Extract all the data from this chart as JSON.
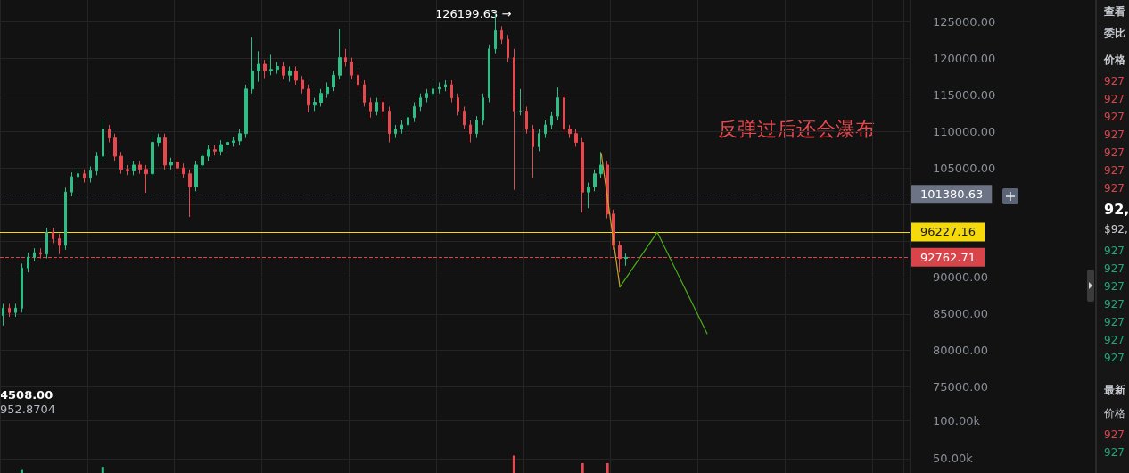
{
  "chart_data": [
    {
      "type": "candlestick",
      "tick_labels": "y",
      "grid": true,
      "categories": [
        null,
        null,
        null,
        null,
        null,
        null,
        null,
        null,
        null,
        null,
        null,
        null,
        null,
        null,
        null,
        null,
        null,
        null,
        null,
        null,
        null,
        null,
        null,
        null,
        null,
        null,
        null,
        null,
        null,
        null,
        null,
        null,
        null,
        null,
        null,
        null,
        null,
        null,
        null,
        null,
        null,
        null,
        null,
        null,
        null,
        null,
        null,
        null,
        null,
        null,
        null,
        null,
        null,
        null,
        null,
        null,
        null,
        null,
        null,
        null,
        null,
        null,
        null,
        null,
        null,
        null,
        null,
        null,
        null,
        null,
        null,
        null,
        null,
        null,
        null,
        null,
        null,
        null,
        null,
        null,
        null,
        null,
        null,
        null,
        null,
        null,
        null,
        null,
        null,
        null,
        null,
        null,
        null,
        null,
        null,
        null,
        null,
        null,
        null,
        null,
        null,
        null,
        null,
        null,
        null,
        null,
        null,
        null,
        null,
        null,
        null,
        null,
        null,
        null,
        null,
        null,
        null,
        null,
        null,
        null,
        null,
        null,
        null,
        null,
        null,
        null,
        null,
        null,
        null,
        null,
        null,
        null,
        null,
        null,
        null,
        null,
        null,
        null,
        null,
        null,
        null,
        null,
        null,
        null,
        null,
        null
      ],
      "ylim": [
        73000,
        128000
      ],
      "yticks": [
        {
          "value": 75000,
          "label": "75000.00"
        },
        {
          "value": 80000,
          "label": "80000.00"
        },
        {
          "value": 85000,
          "label": "85000.00"
        },
        {
          "value": 90000,
          "label": "90000.00"
        },
        {
          "value": 95000,
          "label": null
        },
        {
          "value": 100000,
          "label": null
        },
        {
          "value": 105000,
          "label": "105000.00"
        },
        {
          "value": 110000,
          "label": "110000.00"
        },
        {
          "value": 115000,
          "label": "115000.00"
        },
        {
          "value": 120000,
          "label": "120000.00"
        },
        {
          "value": 125000,
          "label": "125000.00"
        }
      ],
      "ohlc": [
        [
          84800,
          86400,
          83400,
          85800
        ],
        [
          85800,
          86400,
          84600,
          85200
        ],
        [
          85200,
          86400,
          84600,
          85800
        ],
        [
          85800,
          91900,
          85200,
          91300
        ],
        [
          91300,
          93400,
          90700,
          92800
        ],
        [
          92800,
          94000,
          92200,
          93400
        ],
        [
          93400,
          94000,
          92600,
          93200
        ],
        [
          93200,
          96800,
          92600,
          96200
        ],
        [
          96200,
          96800,
          94700,
          95300
        ],
        [
          95300,
          96000,
          93200,
          94400
        ],
        [
          94400,
          102300,
          93800,
          101700
        ],
        [
          101700,
          104400,
          101100,
          103800
        ],
        [
          103800,
          104800,
          103200,
          104200
        ],
        [
          104200,
          104800,
          103000,
          103600
        ],
        [
          103600,
          105200,
          103000,
          104600
        ],
        [
          104600,
          107200,
          104000,
          106600
        ],
        [
          106600,
          111700,
          106000,
          110300
        ],
        [
          110300,
          110900,
          108500,
          109100
        ],
        [
          109100,
          109700,
          106000,
          106600
        ],
        [
          106600,
          107200,
          104200,
          104800
        ],
        [
          104800,
          105400,
          104000,
          104600
        ],
        [
          104600,
          106000,
          104000,
          105400
        ],
        [
          105400,
          106000,
          104200,
          104800
        ],
        [
          104800,
          105400,
          101600,
          104200
        ],
        [
          104200,
          109700,
          103600,
          108500
        ],
        [
          108500,
          109700,
          107900,
          109100
        ],
        [
          109100,
          109700,
          104800,
          105400
        ],
        [
          105400,
          106400,
          104800,
          105800
        ],
        [
          105800,
          106400,
          104400,
          105000
        ],
        [
          105000,
          105600,
          103600,
          104200
        ],
        [
          104200,
          104800,
          98300,
          102400
        ],
        [
          102400,
          106000,
          101800,
          105400
        ],
        [
          105400,
          107200,
          104800,
          106600
        ],
        [
          106600,
          108100,
          106000,
          107500
        ],
        [
          107500,
          108100,
          106700,
          107300
        ],
        [
          107300,
          108800,
          106700,
          108200
        ],
        [
          108200,
          109100,
          107600,
          108500
        ],
        [
          108500,
          109300,
          107900,
          108700
        ],
        [
          108700,
          110300,
          108100,
          109700
        ],
        [
          109700,
          116400,
          109100,
          115800
        ],
        [
          115800,
          122900,
          115200,
          118300
        ],
        [
          118300,
          121000,
          116800,
          119200
        ],
        [
          119200,
          119800,
          117300,
          118300
        ],
        [
          118300,
          120500,
          117700,
          118500
        ],
        [
          118500,
          119500,
          117900,
          118900
        ],
        [
          118900,
          119500,
          117100,
          117700
        ],
        [
          117700,
          118900,
          116800,
          118300
        ],
        [
          118300,
          118900,
          116400,
          117000
        ],
        [
          117000,
          117600,
          115200,
          115800
        ],
        [
          115800,
          116400,
          112600,
          113600
        ],
        [
          113600,
          114600,
          112800,
          114000
        ],
        [
          114000,
          115800,
          113400,
          115200
        ],
        [
          115200,
          116700,
          114600,
          116100
        ],
        [
          116100,
          118300,
          115500,
          117700
        ],
        [
          117700,
          124100,
          117100,
          120100
        ],
        [
          120100,
          121300,
          118900,
          119500
        ],
        [
          119500,
          120100,
          117100,
          117700
        ],
        [
          117700,
          118300,
          115800,
          116400
        ],
        [
          116400,
          117000,
          113400,
          114000
        ],
        [
          114000,
          114600,
          111900,
          112800
        ],
        [
          112800,
          114600,
          112200,
          114000
        ],
        [
          114000,
          114600,
          111600,
          112800
        ],
        [
          112800,
          113400,
          108500,
          109700
        ],
        [
          109700,
          110900,
          109100,
          110300
        ],
        [
          110300,
          111500,
          109700,
          110900
        ],
        [
          110900,
          112500,
          110300,
          111900
        ],
        [
          111900,
          114000,
          111300,
          113400
        ],
        [
          113400,
          115200,
          112800,
          114600
        ],
        [
          114600,
          115800,
          114000,
          115200
        ],
        [
          115200,
          116400,
          114600,
          115800
        ],
        [
          115800,
          116700,
          115200,
          116100
        ],
        [
          116100,
          117000,
          115500,
          116400
        ],
        [
          116400,
          117000,
          114000,
          114600
        ],
        [
          114600,
          115200,
          112200,
          112800
        ],
        [
          112800,
          113400,
          110300,
          110900
        ],
        [
          110900,
          111500,
          108500,
          109700
        ],
        [
          109700,
          112100,
          109100,
          111500
        ],
        [
          111500,
          115200,
          110900,
          114600
        ],
        [
          114600,
          121900,
          114000,
          121300
        ],
        [
          121300,
          126199.63,
          120700,
          123800
        ],
        [
          123800,
          124400,
          122000,
          122600
        ],
        [
          122600,
          123200,
          119500,
          120100
        ],
        [
          120100,
          121300,
          102000,
          112800
        ],
        [
          112800,
          115800,
          112200,
          112800
        ],
        [
          112800,
          113400,
          109700,
          110300
        ],
        [
          110300,
          110900,
          103600,
          107900
        ],
        [
          107900,
          110300,
          107300,
          109700
        ],
        [
          109700,
          111500,
          109100,
          110900
        ],
        [
          110900,
          112700,
          110300,
          112100
        ],
        [
          112100,
          116000,
          111500,
          114600
        ],
        [
          114600,
          115200,
          109700,
          110300
        ],
        [
          110300,
          110900,
          109100,
          109700
        ],
        [
          109700,
          110300,
          107900,
          108500
        ],
        [
          108500,
          109100,
          98900,
          101700
        ],
        [
          101700,
          103000,
          99500,
          102400
        ],
        [
          102400,
          104800,
          101800,
          104200
        ],
        [
          104200,
          107200,
          103600,
          105400
        ],
        [
          105400,
          106000,
          98100,
          98700
        ],
        [
          98700,
          99300,
          93800,
          94400
        ],
        [
          94400,
          95000,
          90700,
          92600
        ],
        [
          92600,
          93300,
          91600,
          92762.71
        ],
        null,
        null,
        null,
        null,
        null,
        null,
        null,
        null,
        null,
        null,
        null,
        null,
        null,
        null,
        null,
        null,
        null,
        null,
        null,
        null,
        null,
        null,
        null,
        null,
        null,
        null,
        null,
        null,
        null,
        null,
        null,
        null,
        null,
        null,
        null,
        null,
        null,
        null,
        null,
        null,
        null,
        null,
        null,
        null,
        null
      ],
      "series": [
        {
          "type": "line",
          "color": "#c9a227",
          "values": [
            null,
            null,
            null,
            null,
            null,
            null,
            null,
            null,
            null,
            null,
            null,
            null,
            null,
            null,
            null,
            null,
            null,
            null,
            null,
            null,
            null,
            null,
            null,
            null,
            null,
            null,
            null,
            null,
            null,
            null,
            null,
            null,
            null,
            null,
            null,
            null,
            null,
            null,
            null,
            null,
            null,
            null,
            null,
            null,
            null,
            null,
            null,
            null,
            null,
            null,
            null,
            null,
            null,
            null,
            null,
            null,
            null,
            null,
            null,
            null,
            null,
            null,
            null,
            null,
            null,
            null,
            null,
            null,
            null,
            null,
            null,
            null,
            null,
            null,
            null,
            null,
            null,
            null,
            null,
            null,
            null,
            null,
            null,
            null,
            null,
            null,
            null,
            null,
            null,
            null,
            null,
            null,
            null,
            null,
            null,
            null,
            107000,
            null,
            null,
            88700,
            null,
            null,
            null,
            null,
            null,
            null,
            null,
            null,
            null,
            null,
            null,
            null,
            null,
            null,
            null,
            null,
            null,
            null,
            null,
            null,
            null,
            null,
            null,
            null,
            null,
            null,
            null,
            null,
            null,
            null,
            null,
            null,
            null,
            null,
            null,
            null,
            null,
            null,
            null,
            null,
            null,
            null,
            null,
            null,
            null,
            null
          ]
        },
        {
          "type": "line",
          "color": "#4caf1a",
          "values": [
            null,
            null,
            null,
            null,
            null,
            null,
            null,
            null,
            null,
            null,
            null,
            null,
            null,
            null,
            null,
            null,
            null,
            null,
            null,
            null,
            null,
            null,
            null,
            null,
            null,
            null,
            null,
            null,
            null,
            null,
            null,
            null,
            null,
            null,
            null,
            null,
            null,
            null,
            null,
            null,
            null,
            null,
            null,
            null,
            null,
            null,
            null,
            null,
            null,
            null,
            null,
            null,
            null,
            null,
            null,
            null,
            null,
            null,
            null,
            null,
            null,
            null,
            null,
            null,
            null,
            null,
            null,
            null,
            null,
            null,
            null,
            null,
            null,
            null,
            null,
            null,
            null,
            null,
            null,
            null,
            null,
            null,
            null,
            null,
            null,
            null,
            null,
            null,
            null,
            null,
            null,
            null,
            null,
            null,
            null,
            null,
            null,
            null,
            null,
            88700,
            null,
            null,
            null,
            null,
            null,
            96200,
            null,
            null,
            null,
            null,
            null,
            null,
            null,
            82300,
            null,
            null,
            null,
            null,
            null,
            null,
            null,
            null,
            null,
            null,
            null,
            null,
            null,
            null,
            null,
            null,
            null,
            null,
            null,
            null,
            null,
            null,
            null,
            null,
            null,
            null,
            null,
            null,
            null,
            null,
            null,
            null
          ]
        }
      ],
      "ref_lines": [
        {
          "axis": "y",
          "value": 101380.63,
          "label": "101380.63",
          "color": "#6b7385",
          "line_style": "dashed"
        },
        {
          "axis": "y",
          "value": 96227.16,
          "label": "96227.16",
          "color": "#f5d90a",
          "line_style": "solid"
        },
        {
          "axis": "y",
          "value": 92762.71,
          "label": "92762.71",
          "color": "#d9444a",
          "line_style": "dashed"
        }
      ],
      "annotations": [
        "126199.63 →",
        "反弹过后还会瀑布",
        "4508.00"
      ]
    },
    {
      "type": "bar",
      "tick_labels": "y",
      "grid": true,
      "categories": [
        null,
        null,
        null,
        null,
        null,
        null,
        null,
        null,
        null,
        null,
        null,
        null,
        null,
        null,
        null,
        null,
        null,
        null,
        null,
        null,
        null,
        null,
        null,
        null,
        null,
        null,
        null,
        null,
        null,
        null,
        null,
        null,
        null,
        null,
        null,
        null,
        null,
        null,
        null,
        null,
        null,
        null,
        null,
        null,
        null,
        null,
        null,
        null,
        null,
        null,
        null,
        null,
        null,
        null,
        null,
        null,
        null,
        null,
        null,
        null,
        null,
        null,
        null,
        null,
        null,
        null,
        null,
        null,
        null,
        null,
        null,
        null,
        null,
        null,
        null,
        null,
        null,
        null,
        null,
        null,
        null,
        null,
        null,
        null,
        null,
        null,
        null,
        null,
        null,
        null,
        null,
        null,
        null,
        null,
        null,
        null,
        null,
        null,
        null,
        null,
        null,
        null,
        null,
        null,
        null,
        null,
        null,
        null,
        null,
        null,
        null,
        null,
        null,
        null,
        null,
        null,
        null,
        null,
        null,
        null,
        null,
        null,
        null,
        null,
        null,
        null,
        null,
        null,
        null,
        null,
        null,
        null,
        null,
        null,
        null,
        null,
        null,
        null,
        null,
        null,
        null,
        null,
        null,
        null,
        null,
        null
      ],
      "ylim": [
        31000,
        125000
      ],
      "yticks": [
        {
          "value": 50000,
          "label": "50.00k"
        },
        {
          "value": 100000,
          "label": "100.00k"
        }
      ],
      "series": [
        {
          "color": "#2ebd85",
          "values": [
            null,
            null,
            null,
            35000,
            null,
            null,
            null,
            null,
            null,
            null,
            null,
            null,
            null,
            null,
            null,
            null,
            39000,
            null,
            null,
            null,
            null,
            null,
            null,
            null,
            null,
            null,
            null,
            null,
            null,
            null,
            null,
            null,
            null,
            null,
            null,
            null,
            null,
            null,
            null,
            null,
            null,
            null,
            null,
            null,
            null,
            null,
            null,
            null,
            null,
            null,
            null,
            null,
            null,
            null,
            null,
            null,
            null,
            null,
            null,
            null,
            null,
            null,
            null,
            null,
            null,
            null,
            null,
            null,
            null,
            null,
            null,
            null,
            null,
            null,
            null,
            null,
            null,
            null,
            null,
            null,
            null,
            null,
            null,
            null,
            null,
            null,
            null,
            null,
            null,
            null,
            null,
            null,
            null,
            null,
            null,
            null,
            null,
            null,
            null,
            null,
            null,
            null,
            null,
            null,
            null,
            null,
            null,
            null,
            null,
            null,
            null,
            null,
            null,
            null,
            null,
            null,
            null,
            null,
            null,
            null,
            null,
            null,
            null,
            null,
            null,
            null,
            null,
            null,
            null,
            null,
            null,
            null,
            null,
            null,
            null,
            null,
            null,
            null,
            null,
            null,
            null,
            null,
            null,
            null,
            null,
            null
          ]
        },
        {
          "color": "#e5484d",
          "values": [
            null,
            null,
            null,
            null,
            null,
            null,
            null,
            null,
            null,
            null,
            null,
            null,
            null,
            null,
            null,
            null,
            null,
            null,
            null,
            null,
            null,
            null,
            null,
            null,
            null,
            null,
            null,
            null,
            null,
            null,
            null,
            null,
            null,
            null,
            null,
            null,
            null,
            null,
            null,
            null,
            null,
            null,
            null,
            null,
            null,
            null,
            null,
            null,
            null,
            null,
            null,
            null,
            null,
            null,
            null,
            null,
            null,
            null,
            null,
            null,
            null,
            null,
            null,
            null,
            null,
            null,
            null,
            null,
            null,
            null,
            null,
            null,
            null,
            null,
            null,
            null,
            null,
            null,
            null,
            null,
            null,
            null,
            54000,
            null,
            null,
            null,
            null,
            null,
            null,
            null,
            null,
            null,
            null,
            44000,
            null,
            null,
            null,
            44000,
            null,
            null,
            null,
            null,
            null,
            null,
            null,
            null,
            null,
            null,
            null,
            null,
            null,
            null,
            null,
            null,
            null,
            null,
            null,
            null,
            null,
            null,
            null,
            null,
            null,
            null,
            null,
            null,
            null,
            null,
            null,
            null,
            null,
            null,
            null,
            null,
            null,
            null,
            null,
            null,
            null,
            null,
            null,
            null,
            null,
            null,
            null,
            null
          ]
        }
      ],
      "annotations": [
        "952.8704"
      ]
    },
    {
      "type": "other",
      "annotations": [
        "查看",
        "委比",
        "价格",
        "927",
        "927",
        "927",
        "927",
        "927",
        "927",
        "927",
        "92,",
        "$92,",
        "927",
        "927",
        "927",
        "927",
        "927",
        "927",
        "927",
        "最新",
        "价格",
        "927",
        "927"
      ]
    }
  ]
}
